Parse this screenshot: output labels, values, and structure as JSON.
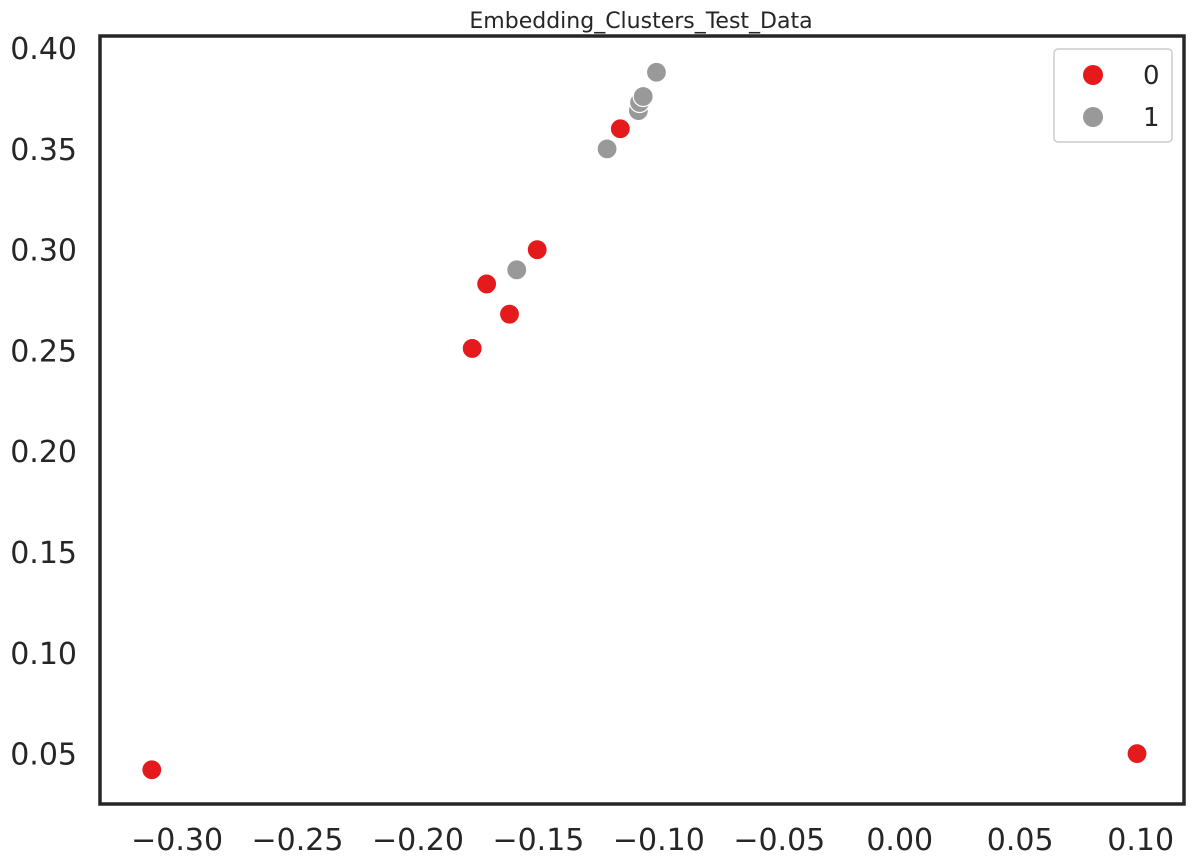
{
  "chart_data": {
    "type": "scatter",
    "title": "Embedding_Clusters_Test_Data",
    "xlabel": "",
    "ylabel": "",
    "xlim": [
      -0.332,
      0.118
    ],
    "ylim": [
      0.025,
      0.406
    ],
    "x_ticks": [
      -0.3,
      -0.25,
      -0.2,
      -0.15,
      -0.1,
      -0.05,
      0.0,
      0.05,
      0.1
    ],
    "x_tick_labels": [
      "−0.30",
      "−0.25",
      "−0.20",
      "−0.15",
      "−0.10",
      "−0.05",
      "0.00",
      "0.05",
      "0.10"
    ],
    "y_ticks": [
      0.05,
      0.1,
      0.15,
      0.2,
      0.25,
      0.3,
      0.35,
      0.4
    ],
    "y_tick_labels": [
      "0.05",
      "0.10",
      "0.15",
      "0.20",
      "0.25",
      "0.30",
      "0.35",
      "0.40"
    ],
    "grid": false,
    "legend_position": "top-right",
    "series": [
      {
        "name": "0",
        "color": "#e41a1c",
        "points": [
          {
            "x": -0.3105,
            "y": 0.042
          },
          {
            "x": -0.1775,
            "y": 0.251
          },
          {
            "x": -0.1715,
            "y": 0.283
          },
          {
            "x": -0.162,
            "y": 0.268
          },
          {
            "x": -0.1505,
            "y": 0.3
          },
          {
            "x": -0.116,
            "y": 0.36
          },
          {
            "x": 0.0985,
            "y": 0.05
          }
        ]
      },
      {
        "name": "1",
        "color": "#999999",
        "points": [
          {
            "x": -0.159,
            "y": 0.29
          },
          {
            "x": -0.1215,
            "y": 0.35
          },
          {
            "x": -0.1085,
            "y": 0.369
          },
          {
            "x": -0.108,
            "y": 0.373
          },
          {
            "x": -0.1065,
            "y": 0.376
          },
          {
            "x": -0.101,
            "y": 0.388
          }
        ]
      }
    ]
  }
}
